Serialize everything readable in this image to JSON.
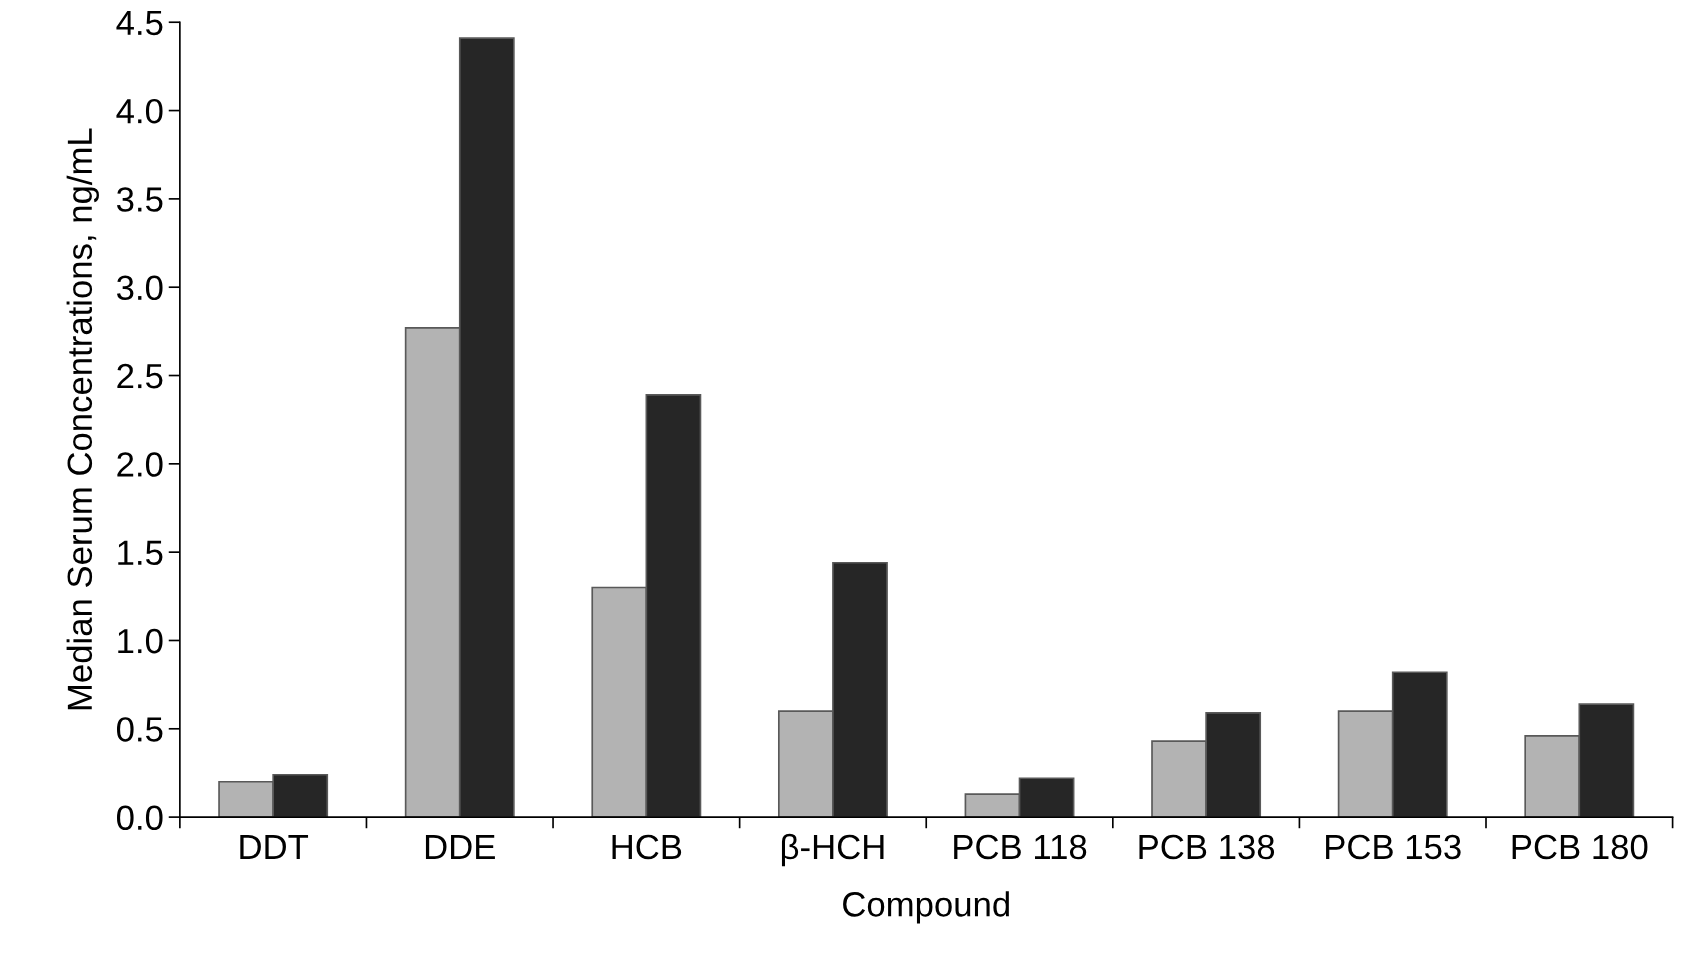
{
  "chart_data": {
    "type": "bar",
    "xlabel": "Compound",
    "ylabel": "Median Serum Concentrations, ng/mL",
    "categories": [
      "DDT",
      "DDE",
      "HCB",
      "β-HCH",
      "PCB 118",
      "PCB 138",
      "PCB 153",
      "PCB 180"
    ],
    "series": [
      {
        "color": "#b3b3b3",
        "values": [
          0.2,
          2.77,
          1.3,
          0.6,
          0.13,
          0.43,
          0.6,
          0.46
        ]
      },
      {
        "color": "#262626",
        "values": [
          0.24,
          4.41,
          2.39,
          1.44,
          0.22,
          0.59,
          0.82,
          0.64
        ]
      }
    ],
    "ylim": [
      0,
      4.5
    ],
    "yticks": [
      {
        "value": 0,
        "label": "0.0"
      },
      {
        "value": 0.5,
        "label": "0.5"
      },
      {
        "value": 1,
        "label": "1.0"
      },
      {
        "value": 1.5,
        "label": "1.5"
      },
      {
        "value": 2,
        "label": "2.0"
      },
      {
        "value": 2.5,
        "label": "2.5"
      },
      {
        "value": 3,
        "label": "3.0"
      },
      {
        "value": 3.5,
        "label": "3.5"
      },
      {
        "value": 4,
        "label": "4.0"
      },
      {
        "value": 4.5,
        "label": "4.5"
      }
    ],
    "grid": false
  }
}
